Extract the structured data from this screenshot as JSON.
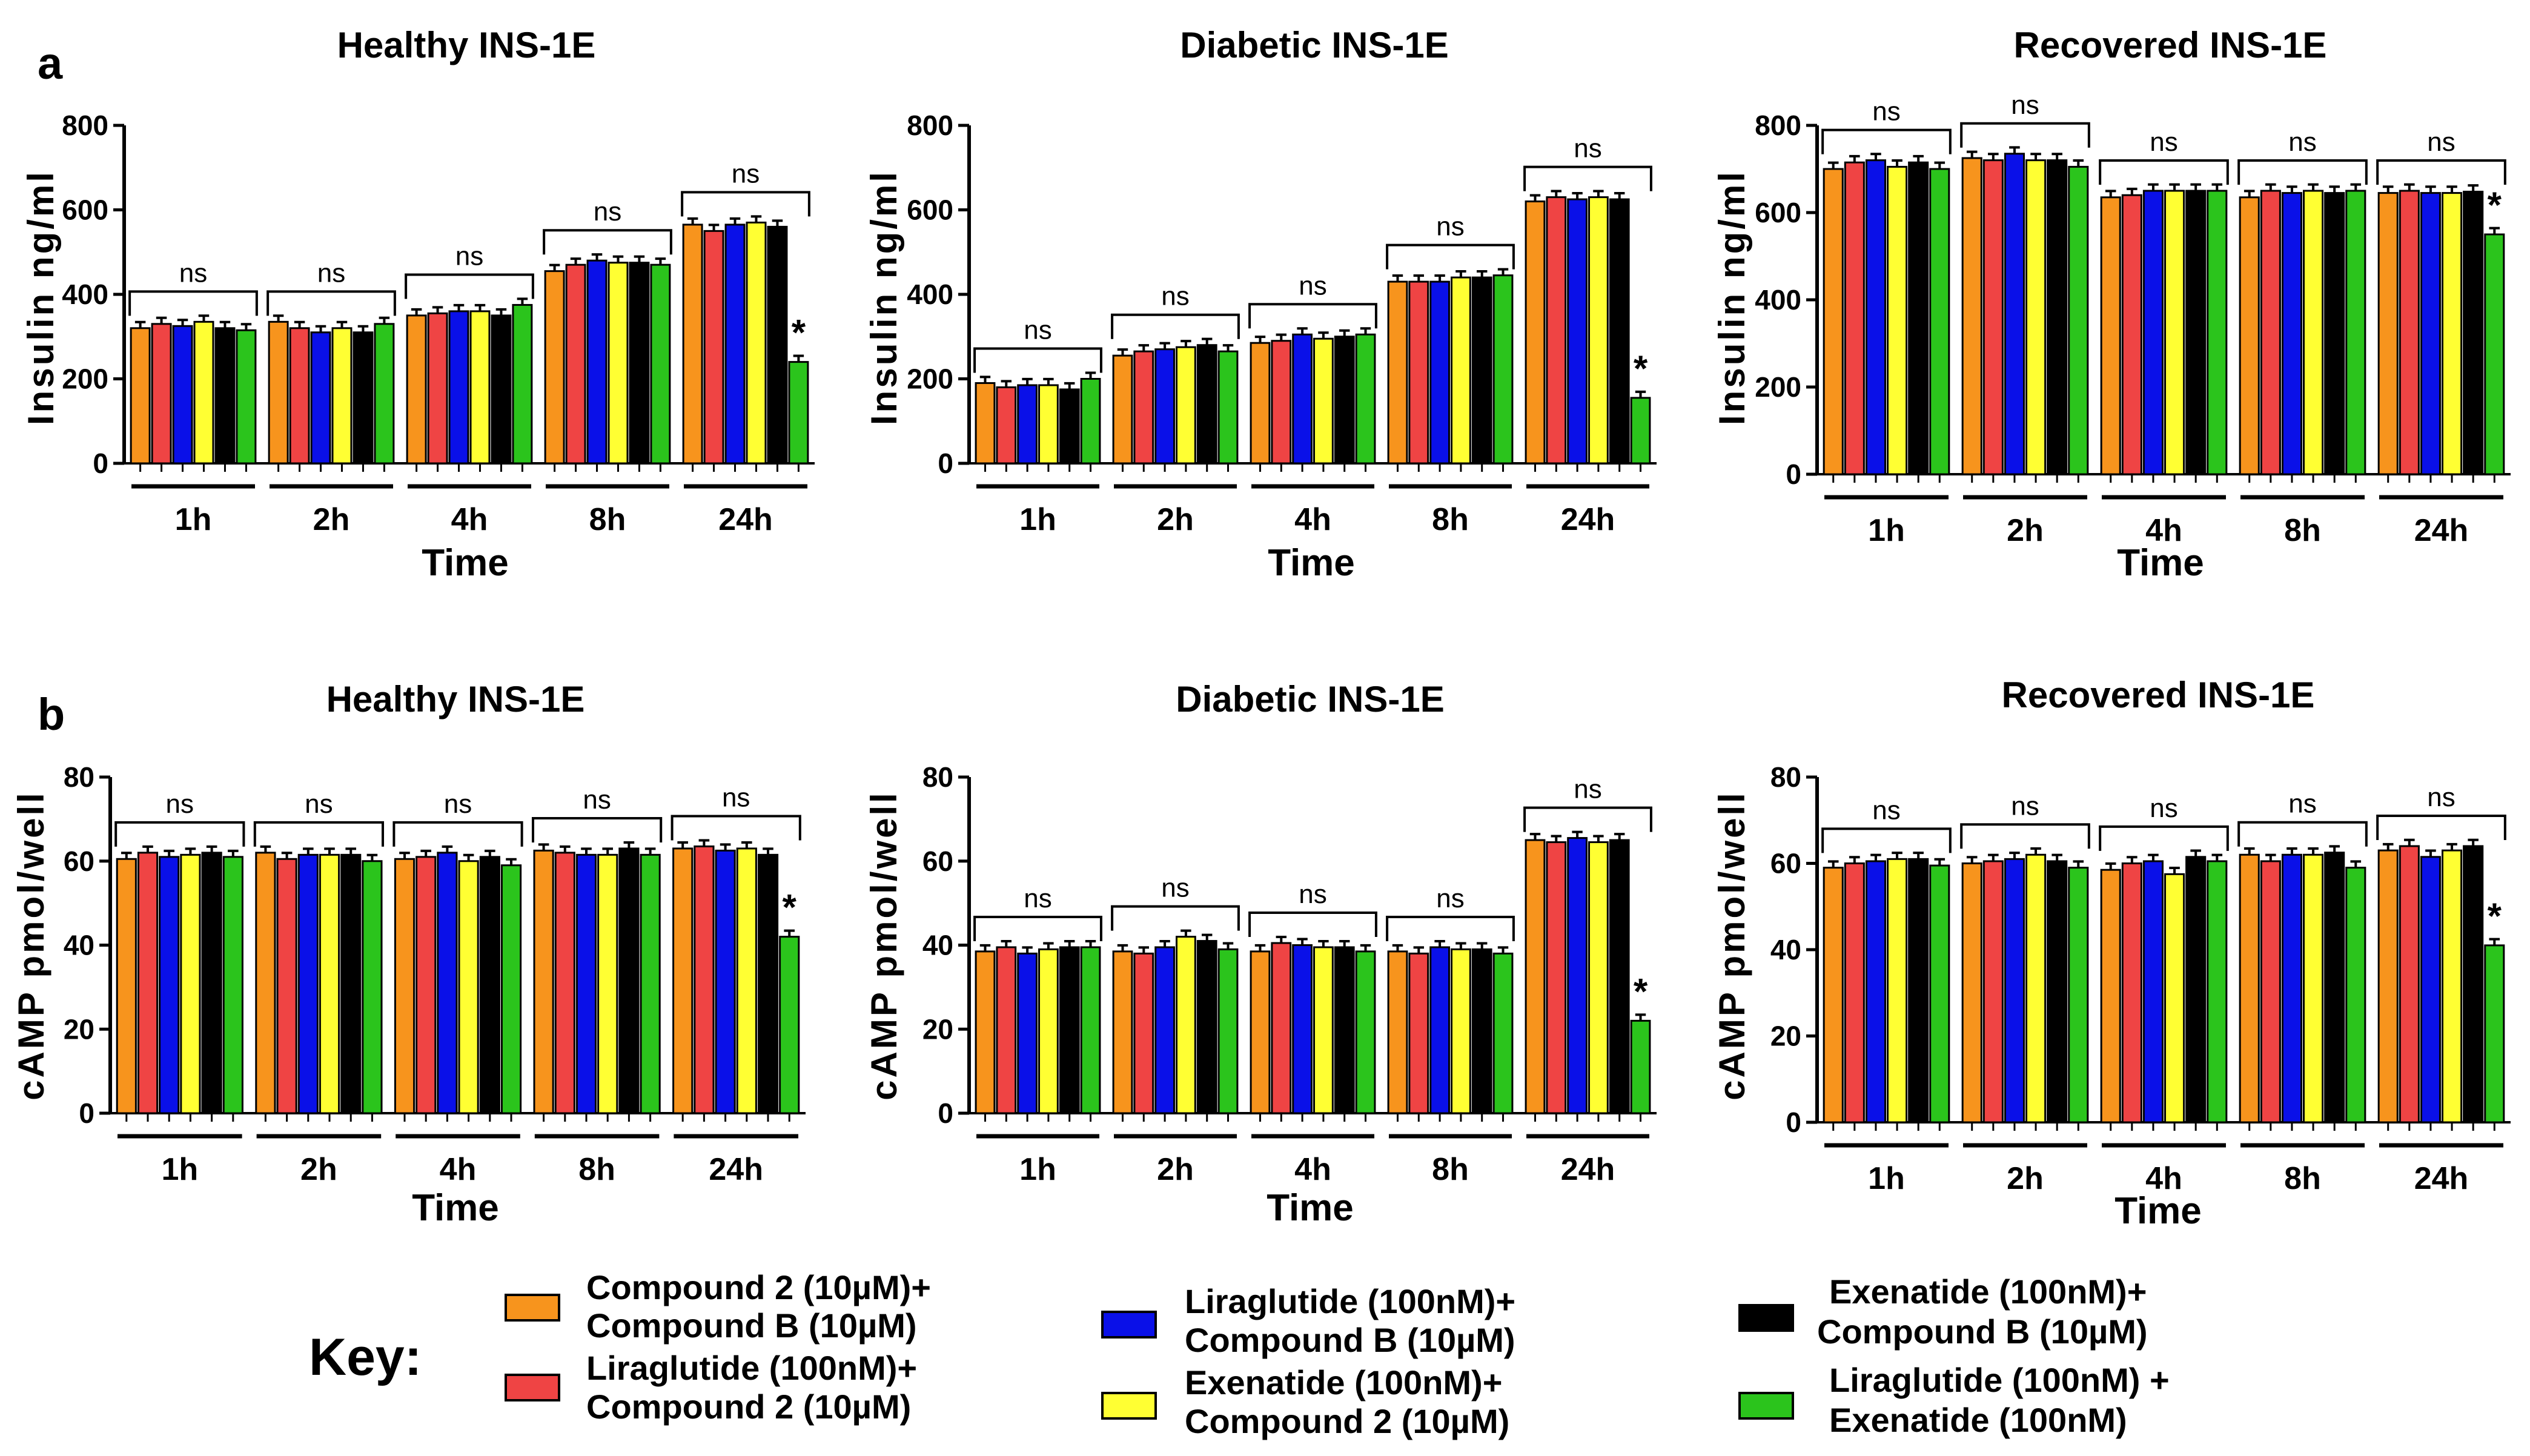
{
  "panel_labels": [
    "a",
    "b"
  ],
  "colors": {
    "Compound 2 (10µM)+ Compound B (10µM)": "#f7941d",
    "Liraglutide (100nM)+ Compound 2 (10µM)": "#ef4444",
    "Liraglutide (100nM)+ Compound B (10µM)": "#0a10e8",
    "Exenatide (100nM)+ Compound 2 (10µM)": "#ffff33",
    "Exenatide (100nM)+ Compound B (10µM)": "#000000",
    "Liraglutide (100nM) + Exenatide (100nM)": "#2bc41c"
  },
  "key": {
    "title": "Key:",
    "items": [
      {
        "line1": "Compound 2 (10µM)+",
        "line2": "Compound B (10µM)",
        "color": "#f7941d"
      },
      {
        "line1": "Liraglutide (100nM)+",
        "line2": "Compound 2 (10µM)",
        "color": "#ef4444"
      },
      {
        "line1": "Liraglutide (100nM)+",
        "line2": "Compound B (10µM)",
        "color": "#0a10e8"
      },
      {
        "line1": "Exenatide (100nM)+",
        "line2": "Compound 2 (10µM)",
        "color": "#ffff33"
      },
      {
        "line1": "Exenatide (100nM)+",
        "line2": "Compound B (10µM)",
        "color": "#000000"
      },
      {
        "line1": "Liraglutide (100nM) +",
        "line2": "Exenatide (100nM)",
        "color": "#2bc41c"
      }
    ]
  },
  "chart_data": [
    {
      "type": "bar",
      "panel": "a",
      "title": "Healthy INS-1E",
      "xlabel": "Time",
      "ylabel": "Insulin ng/ml",
      "ylim": [
        0,
        800
      ],
      "yticks": [
        0,
        200,
        400,
        600,
        800
      ],
      "categories": [
        "1h",
        "2h",
        "4h",
        "8h",
        "24h"
      ],
      "significance": [
        "ns",
        "ns",
        "ns",
        "ns",
        "ns"
      ],
      "star": "*",
      "series": [
        {
          "name": "Compound 2 (10µM)+ Compound B (10µM)",
          "values": [
            320,
            335,
            350,
            455,
            565
          ]
        },
        {
          "name": "Liraglutide (100nM)+ Compound 2 (10µM)",
          "values": [
            330,
            320,
            355,
            470,
            550
          ]
        },
        {
          "name": "Liraglutide (100nM)+ Compound B (10µM)",
          "values": [
            325,
            310,
            360,
            480,
            565
          ]
        },
        {
          "name": "Exenatide (100nM)+ Compound 2 (10µM)",
          "values": [
            335,
            320,
            360,
            475,
            570
          ]
        },
        {
          "name": "Exenatide (100nM)+ Compound B (10µM)",
          "values": [
            320,
            310,
            350,
            475,
            560
          ]
        },
        {
          "name": "Liraglutide (100nM) + Exenatide (100nM)",
          "values": [
            315,
            330,
            375,
            470,
            240
          ]
        }
      ]
    },
    {
      "type": "bar",
      "panel": "a",
      "title": "Diabetic INS-1E",
      "xlabel": "Time",
      "ylabel": "Insulin ng/ml",
      "ylim": [
        0,
        800
      ],
      "yticks": [
        0,
        200,
        400,
        600,
        800
      ],
      "categories": [
        "1h",
        "2h",
        "4h",
        "8h",
        "24h"
      ],
      "significance": [
        "ns",
        "ns",
        "ns",
        "ns",
        "ns"
      ],
      "star": "*",
      "series": [
        {
          "name": "Compound 2 (10µM)+ Compound B (10µM)",
          "values": [
            190,
            255,
            285,
            430,
            620
          ]
        },
        {
          "name": "Liraglutide (100nM)+ Compound 2 (10µM)",
          "values": [
            180,
            265,
            290,
            430,
            630
          ]
        },
        {
          "name": "Liraglutide (100nM)+ Compound B (10µM)",
          "values": [
            185,
            270,
            305,
            430,
            625
          ]
        },
        {
          "name": "Exenatide (100nM)+ Compound 2 (10µM)",
          "values": [
            185,
            275,
            295,
            440,
            630
          ]
        },
        {
          "name": "Exenatide (100nM)+ Compound B (10µM)",
          "values": [
            175,
            280,
            300,
            440,
            625
          ]
        },
        {
          "name": "Liraglutide (100nM) + Exenatide (100nM)",
          "values": [
            200,
            265,
            305,
            445,
            155
          ]
        }
      ]
    },
    {
      "type": "bar",
      "panel": "a",
      "title": "Recovered INS-1E",
      "xlabel": "Time",
      "ylabel": "Insulin ng/ml",
      "ylim": [
        0,
        800
      ],
      "yticks": [
        0,
        200,
        400,
        600,
        800
      ],
      "categories": [
        "1h",
        "2h",
        "4h",
        "8h",
        "24h"
      ],
      "significance": [
        "ns",
        "ns",
        "ns",
        "ns",
        "ns"
      ],
      "star": "*",
      "series": [
        {
          "name": "Compound 2 (10µM)+ Compound B (10µM)",
          "values": [
            700,
            725,
            635,
            635,
            645
          ]
        },
        {
          "name": "Liraglutide (100nM)+ Compound 2 (10µM)",
          "values": [
            715,
            720,
            640,
            650,
            650
          ]
        },
        {
          "name": "Liraglutide (100nM)+ Compound B (10µM)",
          "values": [
            720,
            735,
            650,
            645,
            645
          ]
        },
        {
          "name": "Exenatide (100nM)+ Compound 2 (10µM)",
          "values": [
            705,
            720,
            650,
            650,
            645
          ]
        },
        {
          "name": "Exenatide (100nM)+ Compound B (10µM)",
          "values": [
            715,
            720,
            650,
            645,
            648
          ]
        },
        {
          "name": "Liraglutide (100nM) + Exenatide (100nM)",
          "values": [
            700,
            705,
            650,
            650,
            550
          ]
        }
      ]
    },
    {
      "type": "bar",
      "panel": "b",
      "title": "Healthy INS-1E",
      "xlabel": "Time",
      "ylabel": "cAMP pmol/well",
      "ylim": [
        0,
        80
      ],
      "yticks": [
        0,
        20,
        40,
        60,
        80
      ],
      "categories": [
        "1h",
        "2h",
        "4h",
        "8h",
        "24h"
      ],
      "significance": [
        "ns",
        "ns",
        "ns",
        "ns",
        "ns"
      ],
      "star": "*",
      "series": [
        {
          "name": "Compound 2 (10µM)+ Compound B (10µM)",
          "values": [
            60.5,
            62,
            60.5,
            62.5,
            63
          ]
        },
        {
          "name": "Liraglutide (100nM)+ Compound 2 (10µM)",
          "values": [
            62,
            60.5,
            61,
            62,
            63.5
          ]
        },
        {
          "name": "Liraglutide (100nM)+ Compound B (10µM)",
          "values": [
            61,
            61.5,
            62,
            61.5,
            62.5
          ]
        },
        {
          "name": "Exenatide (100nM)+ Compound 2 (10µM)",
          "values": [
            61.5,
            61.5,
            60,
            61.5,
            63
          ]
        },
        {
          "name": "Exenatide (100nM)+ Compound B (10µM)",
          "values": [
            62,
            61.5,
            61,
            63,
            61.5
          ]
        },
        {
          "name": "Liraglutide (100nM) + Exenatide (100nM)",
          "values": [
            61,
            60,
            59,
            61.5,
            42
          ]
        }
      ]
    },
    {
      "type": "bar",
      "panel": "b",
      "title": "Diabetic INS-1E",
      "xlabel": "Time",
      "ylabel": "cAMP pmol/well",
      "ylim": [
        0,
        80
      ],
      "yticks": [
        0,
        20,
        40,
        60,
        80
      ],
      "categories": [
        "1h",
        "2h",
        "4h",
        "8h",
        "24h"
      ],
      "significance": [
        "ns",
        "ns",
        "ns",
        "ns",
        "ns"
      ],
      "star": "*",
      "series": [
        {
          "name": "Compound 2 (10µM)+ Compound B (10µM)",
          "values": [
            38.5,
            38.5,
            38.5,
            38.5,
            65
          ]
        },
        {
          "name": "Liraglutide (100nM)+ Compound 2 (10µM)",
          "values": [
            39.5,
            38,
            40.5,
            38,
            64.5
          ]
        },
        {
          "name": "Liraglutide (100nM)+ Compound B (10µM)",
          "values": [
            38,
            39.5,
            40,
            39.5,
            65.5
          ]
        },
        {
          "name": "Exenatide (100nM)+ Compound 2 (10µM)",
          "values": [
            39,
            42,
            39.5,
            39,
            64.5
          ]
        },
        {
          "name": "Exenatide (100nM)+ Compound B (10µM)",
          "values": [
            39.5,
            41,
            39.5,
            39,
            65
          ]
        },
        {
          "name": "Liraglutide (100nM) + Exenatide (100nM)",
          "values": [
            39.5,
            39,
            38.5,
            38,
            22
          ]
        }
      ]
    },
    {
      "type": "bar",
      "panel": "b",
      "title": "Recovered INS-1E",
      "xlabel": "Time",
      "ylabel": "cAMP pmol/well",
      "ylim": [
        0,
        80
      ],
      "yticks": [
        0,
        20,
        40,
        60,
        80
      ],
      "categories": [
        "1h",
        "2h",
        "4h",
        "8h",
        "24h"
      ],
      "significance": [
        "ns",
        "ns",
        "ns",
        "ns",
        "ns"
      ],
      "star": "*",
      "series": [
        {
          "name": "Compound 2 (10µM)+ Compound B (10µM)",
          "values": [
            59,
            60,
            58.5,
            62,
            63
          ]
        },
        {
          "name": "Liraglutide (100nM)+ Compound 2 (10µM)",
          "values": [
            60,
            60.5,
            60,
            60.5,
            64
          ]
        },
        {
          "name": "Liraglutide (100nM)+ Compound B (10µM)",
          "values": [
            60.5,
            61,
            60.5,
            62,
            61.5
          ]
        },
        {
          "name": "Exenatide (100nM)+ Compound 2 (10µM)",
          "values": [
            61,
            62,
            57.5,
            62,
            63
          ]
        },
        {
          "name": "Exenatide (100nM)+ Compound B (10µM)",
          "values": [
            61,
            60.5,
            61.5,
            62.5,
            64
          ]
        },
        {
          "name": "Liraglutide (100nM) + Exenatide (100nM)",
          "values": [
            59.5,
            59,
            60.5,
            59,
            41
          ]
        }
      ]
    }
  ]
}
